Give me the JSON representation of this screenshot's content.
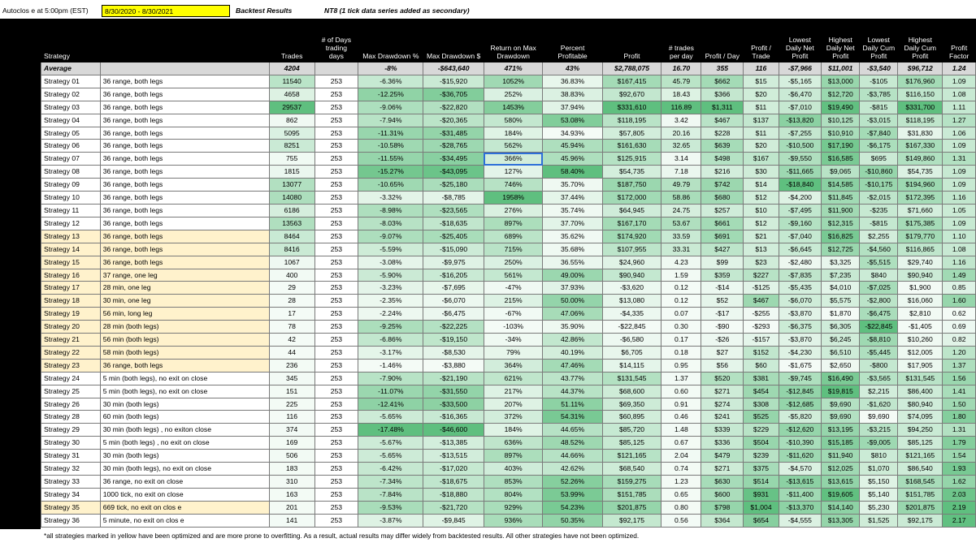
{
  "header": {
    "autoclose": "Autoclos e at 5:00pm (EST)",
    "date_range": "8/30/2020 - 8/30/2021",
    "title": "Backtest Results",
    "note": "NT8 (1 tick data series added as secondary)"
  },
  "columns": [
    "Strategy",
    "",
    "Trades",
    "# of Days trading days",
    "Max Drawdown %",
    "Max Drawdown $",
    "Return on Max Drawdown",
    "Percent Profitable",
    "Profit",
    "# trades per day",
    "Profit / Day",
    "Profit / Trade",
    "Lowest Daily Net Profit",
    "Highest Daily Net Profit",
    "Lowest Daily Cum Profit",
    "Highest Daily Cum Profit",
    "Profit Factor"
  ],
  "average": [
    "Average",
    "",
    "4204",
    "",
    "-8%",
    "-$643,640",
    "471%",
    "43%",
    "$2,788,075",
    "16.70",
    "355",
    "116",
    "-$7,966",
    "$11,001",
    "-$3,540",
    "$96,712",
    "1.24"
  ],
  "rows": [
    [
      "Strategy 01",
      "36 range, both legs",
      "11540",
      "253",
      "-6.36%",
      "-$15,920",
      "1052%",
      "36.83%",
      "$167,415",
      "45.79",
      "$662",
      "$15",
      "-$5,165",
      "$13,000",
      "-$105",
      "$176,960",
      "1.09"
    ],
    [
      "Strategy 02",
      "36 range, both legs",
      "4658",
      "253",
      "-12.25%",
      "-$36,705",
      "252%",
      "38.83%",
      "$92,670",
      "18.43",
      "$366",
      "$20",
      "-$6,470",
      "$12,720",
      "-$3,785",
      "$116,150",
      "1.08"
    ],
    [
      "Strategy 03",
      "36 range, both legs",
      "29537",
      "253",
      "-9.06%",
      "-$22,820",
      "1453%",
      "37.94%",
      "$331,610",
      "116.89",
      "$1,311",
      "$11",
      "-$7,010",
      "$19,490",
      "-$815",
      "$331,700",
      "1.11"
    ],
    [
      "Strategy 04",
      "36 range, both legs",
      "862",
      "253",
      "-7.94%",
      "-$20,365",
      "580%",
      "53.08%",
      "$118,195",
      "3.42",
      "$467",
      "$137",
      "-$13,820",
      "$10,125",
      "-$3,015",
      "$118,195",
      "1.27"
    ],
    [
      "Strategy 05",
      "36 range, both legs",
      "5095",
      "253",
      "-11.31%",
      "-$31,485",
      "184%",
      "34.93%",
      "$57,805",
      "20.16",
      "$228",
      "$11",
      "-$7,255",
      "$10,910",
      "-$7,840",
      "$31,830",
      "1.06"
    ],
    [
      "Strategy 06",
      "36 range, both legs",
      "8251",
      "253",
      "-10.58%",
      "-$28,765",
      "562%",
      "45.94%",
      "$161,630",
      "32.65",
      "$639",
      "$20",
      "-$10,500",
      "$17,190",
      "-$6,175",
      "$167,330",
      "1.09"
    ],
    [
      "Strategy 07",
      "36 range, both legs",
      "755",
      "253",
      "-11.55%",
      "-$34,495",
      "366%",
      "45.96%",
      "$125,915",
      "3.14",
      "$498",
      "$167",
      "-$9,550",
      "$16,585",
      "$695",
      "$149,860",
      "1.31"
    ],
    [
      "Strategy 08",
      "36 range, both legs",
      "1815",
      "253",
      "-15.27%",
      "-$43,095",
      "127%",
      "58.40%",
      "$54,735",
      "7.18",
      "$216",
      "$30",
      "-$11,665",
      "$9,065",
      "-$10,860",
      "$54,735",
      "1.09"
    ],
    [
      "Strategy 09",
      "36 range, both legs",
      "13077",
      "253",
      "-10.65%",
      "-$25,180",
      "746%",
      "35.70%",
      "$187,750",
      "49.79",
      "$742",
      "$14",
      "-$18,840",
      "$14,585",
      "-$10,175",
      "$194,960",
      "1.09"
    ],
    [
      "Strategy 10",
      "36 range, both legs",
      "14080",
      "253",
      "-3.32%",
      "-$8,785",
      "1958%",
      "37.44%",
      "$172,000",
      "58.86",
      "$680",
      "$12",
      "-$4,200",
      "$11,845",
      "-$2,015",
      "$172,395",
      "1.16"
    ],
    [
      "Strategy 11",
      "36 range, both legs",
      "6186",
      "253",
      "-8.98%",
      "-$23,565",
      "276%",
      "35.74%",
      "$64,945",
      "24.75",
      "$257",
      "$10",
      "-$7,495",
      "$11,900",
      "-$235",
      "$71,660",
      "1.05"
    ],
    [
      "Strategy 12",
      "36 range, both legs",
      "13563",
      "253",
      "-8.03%",
      "-$18,635",
      "897%",
      "37.70%",
      "$167,170",
      "53.67",
      "$661",
      "$12",
      "-$9,160",
      "$12,315",
      "-$815",
      "$175,385",
      "1.09"
    ],
    [
      "Strategy 13",
      "36 range, both legs",
      "8464",
      "253",
      "-9.07%",
      "-$25,405",
      "689%",
      "35.62%",
      "$174,920",
      "33.59",
      "$691",
      "$21",
      "-$7,040",
      "$16,825",
      "$2,255",
      "$179,770",
      "1.10"
    ],
    [
      "Strategy 14",
      "36 range, both legs",
      "8416",
      "253",
      "-5.59%",
      "-$15,090",
      "715%",
      "35.68%",
      "$107,955",
      "33.31",
      "$427",
      "$13",
      "-$6,645",
      "$12,725",
      "-$4,560",
      "$116,865",
      "1.08"
    ],
    [
      "Strategy 15",
      "36 range, both legs",
      "1067",
      "253",
      "-3.08%",
      "-$9,975",
      "250%",
      "36.55%",
      "$24,960",
      "4.23",
      "$99",
      "$23",
      "-$2,480",
      "$3,325",
      "-$5,515",
      "$29,740",
      "1.16"
    ],
    [
      "Strategy 16",
      "37 range, one leg",
      "400",
      "253",
      "-5.90%",
      "-$16,205",
      "561%",
      "49.00%",
      "$90,940",
      "1.59",
      "$359",
      "$227",
      "-$7,835",
      "$7,235",
      "$840",
      "$90,940",
      "1.49"
    ],
    [
      "Strategy 17",
      "28 min, one leg",
      "29",
      "253",
      "-3.23%",
      "-$7,695",
      "-47%",
      "37.93%",
      "-$3,620",
      "0.12",
      "-$14",
      "-$125",
      "-$5,435",
      "$4,010",
      "-$7,025",
      "$1,900",
      "0.85"
    ],
    [
      "Strategy 18",
      "30 min, one leg",
      "28",
      "253",
      "-2.35%",
      "-$6,070",
      "215%",
      "50.00%",
      "$13,080",
      "0.12",
      "$52",
      "$467",
      "-$6,070",
      "$5,575",
      "-$2,800",
      "$16,060",
      "1.60"
    ],
    [
      "Strategy 19",
      "56 min, long leg",
      "17",
      "253",
      "-2.24%",
      "-$6,475",
      "-67%",
      "47.06%",
      "-$4,335",
      "0.07",
      "-$17",
      "-$255",
      "-$3,870",
      "$1,870",
      "-$6,475",
      "$2,810",
      "0.62"
    ],
    [
      "Strategy 20",
      "28 min (both legs)",
      "78",
      "253",
      "-9.25%",
      "-$22,225",
      "-103%",
      "35.90%",
      "-$22,845",
      "0.30",
      "-$90",
      "-$293",
      "-$6,375",
      "$6,305",
      "-$22,845",
      "-$1,405",
      "0.69"
    ],
    [
      "Strategy 21",
      "56 min (both legs)",
      "42",
      "253",
      "-6.86%",
      "-$19,150",
      "-34%",
      "42.86%",
      "-$6,580",
      "0.17",
      "-$26",
      "-$157",
      "-$3,870",
      "$6,245",
      "-$8,810",
      "$10,260",
      "0.82"
    ],
    [
      "Strategy 22",
      "58 min (both legs)",
      "44",
      "253",
      "-3.17%",
      "-$8,530",
      "79%",
      "40.19%",
      "$6,705",
      "0.18",
      "$27",
      "$152",
      "-$4,230",
      "$6,510",
      "-$5,445",
      "$12,005",
      "1.20"
    ],
    [
      "Strategy 23",
      "36 range, both legs",
      "236",
      "253",
      "-1.46%",
      "-$3,880",
      "364%",
      "47.46%",
      "$14,115",
      "0.95",
      "$56",
      "$60",
      "-$1,675",
      "$2,650",
      "-$800",
      "$17,905",
      "1.37"
    ],
    [
      "Strategy 24",
      "5 min (both legs), no exit on close",
      "345",
      "253",
      "-7.90%",
      "-$21,190",
      "621%",
      "43.77%",
      "$131,545",
      "1.37",
      "$520",
      "$381",
      "-$9,745",
      "$16,490",
      "-$3,565",
      "$131,545",
      "1.56"
    ],
    [
      "Strategy 25",
      "5 min (both legs), no exit on close",
      "151",
      "253",
      "-11.07%",
      "-$31,550",
      "217%",
      "44.37%",
      "$68,600",
      "0.60",
      "$271",
      "$454",
      "-$12,845",
      "$19,815",
      "$2,215",
      "$86,400",
      "1.41"
    ],
    [
      "Strategy 26",
      "30 min (both legs)",
      "225",
      "253",
      "-12.41%",
      "-$33,500",
      "207%",
      "51.11%",
      "$69,350",
      "0.91",
      "$274",
      "$308",
      "-$12,685",
      "$9,690",
      "-$1,620",
      "$80,940",
      "1.50"
    ],
    [
      "Strategy 28",
      "60 min (both legs)",
      "116",
      "253",
      "-5.65%",
      "-$16,365",
      "372%",
      "54.31%",
      "$60,895",
      "0.46",
      "$241",
      "$525",
      "-$5,820",
      "$9,690",
      "$9,690",
      "$74,095",
      "1.80"
    ],
    [
      "Strategy 29",
      "30 min (both legs) , no exiton close",
      "374",
      "253",
      "-17.48%",
      "-$46,600",
      "184%",
      "44.65%",
      "$85,720",
      "1.48",
      "$339",
      "$229",
      "-$12,620",
      "$13,195",
      "-$3,215",
      "$94,250",
      "1.31"
    ],
    [
      "Strategy 30",
      "5 min (both legs) , no exit on close",
      "169",
      "253",
      "-5.67%",
      "-$13,385",
      "636%",
      "48.52%",
      "$85,125",
      "0.67",
      "$336",
      "$504",
      "-$10,390",
      "$15,185",
      "-$9,005",
      "$85,125",
      "1.79"
    ],
    [
      "Strategy 31",
      "30 min (both legs)",
      "506",
      "253",
      "-5.65%",
      "-$13,515",
      "897%",
      "44.66%",
      "$121,165",
      "2.04",
      "$479",
      "$239",
      "-$11,620",
      "$11,940",
      "$810",
      "$121,165",
      "1.54"
    ],
    [
      "Strategy 32",
      "30 min (both legs), no exit on close",
      "183",
      "253",
      "-6.42%",
      "-$17,020",
      "403%",
      "42.62%",
      "$68,540",
      "0.74",
      "$271",
      "$375",
      "-$4,570",
      "$12,025",
      "$1,070",
      "$86,540",
      "1.93"
    ],
    [
      "Strategy 33",
      "36 range, no exit on close",
      "310",
      "253",
      "-7.34%",
      "-$18,675",
      "853%",
      "52.26%",
      "$159,275",
      "1.23",
      "$630",
      "$514",
      "-$13,615",
      "$13,615",
      "$5,150",
      "$168,545",
      "1.62"
    ],
    [
      "Strategy 34",
      "1000 tick, no exit on close",
      "163",
      "253",
      "-7.84%",
      "-$18,880",
      "804%",
      "53.99%",
      "$151,785",
      "0.65",
      "$600",
      "$931",
      "-$11,400",
      "$19,605",
      "$5,140",
      "$151,785",
      "2.03"
    ],
    [
      "Strategy 35",
      "669 tick, no exit on clos e",
      "201",
      "253",
      "-9.53%",
      "-$21,720",
      "929%",
      "54.23%",
      "$201,875",
      "0.80",
      "$798",
      "$1,004",
      "-$13,370",
      "$14,140",
      "$5,230",
      "$201,875",
      "2.19"
    ],
    [
      "Strategy 36",
      "5 minute, no exit on clos e",
      "141",
      "253",
      "-3.87%",
      "-$9,845",
      "936%",
      "50.35%",
      "$92,175",
      "0.56",
      "$364",
      "$654",
      "-$4,555",
      "$13,305",
      "$1,525",
      "$92,175",
      "2.17"
    ]
  ],
  "yellow_rows": [
    12,
    13,
    14,
    15,
    16,
    17,
    18,
    19,
    20,
    21,
    22,
    33
  ],
  "footnote": "*all strategies marked in yellow have been optimized and are more prone to overfitting. As a result, actual results may differ widely from backtested results. All other strategies have not been optimized.",
  "colors": {
    "green_dark": "#5fbf7f",
    "green_light": "#f4fbf6",
    "yellow": "#fff2cc",
    "header_bg": "#000000",
    "selection": "#2e6fd8"
  }
}
